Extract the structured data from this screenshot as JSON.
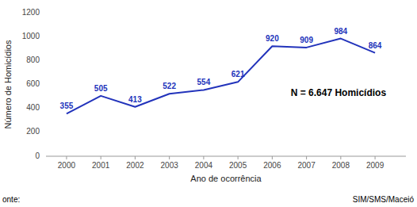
{
  "chart_data": {
    "type": "line",
    "x": [
      2000,
      2001,
      2002,
      2003,
      2004,
      2005,
      2006,
      2007,
      2008,
      2009
    ],
    "values": [
      355,
      505,
      413,
      522,
      554,
      621,
      920,
      909,
      984,
      864
    ],
    "color": "#2233bb",
    "xlabel": "Ano de ocorrência",
    "ylabel": "Número de Homicídios",
    "xlim": [
      1999.4,
      2009.9
    ],
    "xticks": [
      2000,
      2001,
      2002,
      2003,
      2004,
      2005,
      2006,
      2007,
      2008,
      2009
    ],
    "ylim": [
      0,
      1200
    ],
    "yticks": [
      0,
      200,
      400,
      600,
      800,
      1000,
      1200
    ],
    "grid": false,
    "data_labels": true,
    "annotation": "N = 6.647 Homicídios",
    "source_prefix": "onte:",
    "source": "SIM/SMS/Maceió"
  }
}
